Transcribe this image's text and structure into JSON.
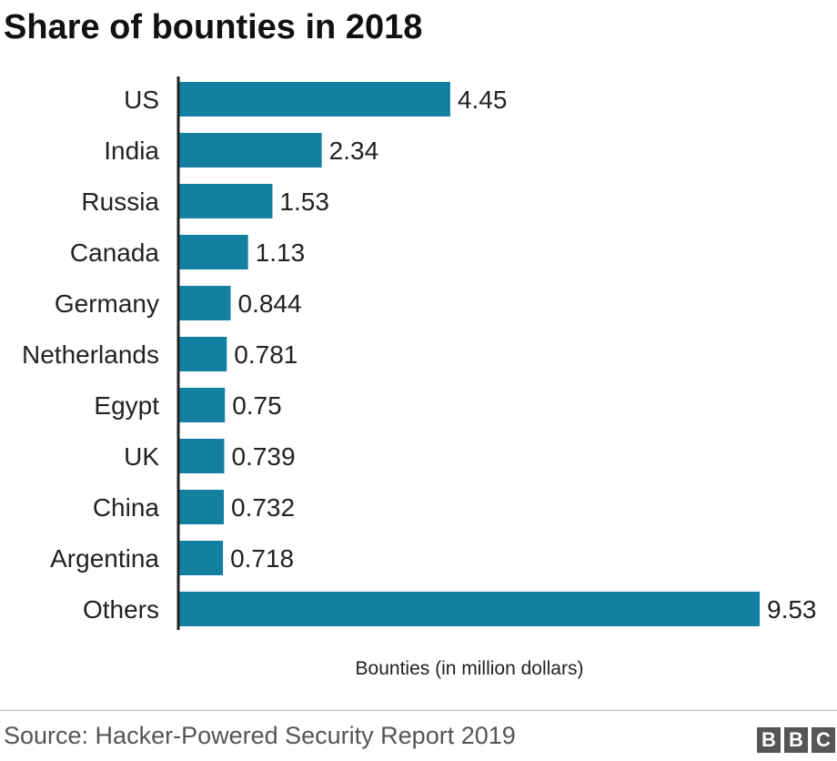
{
  "chart_data": {
    "type": "bar",
    "orientation": "horizontal",
    "title": "Share of bounties in 2018",
    "xlabel": "Bounties (in million dollars)",
    "ylabel": "",
    "categories": [
      "US",
      "India",
      "Russia",
      "Canada",
      "Germany",
      "Netherlands",
      "Egypt",
      "UK",
      "China",
      "Argentina",
      "Others"
    ],
    "values": [
      4.45,
      2.34,
      1.53,
      1.13,
      0.844,
      0.781,
      0.75,
      0.739,
      0.732,
      0.718,
      9.53
    ],
    "value_labels": [
      "4.45",
      "2.34",
      "1.53",
      "1.13",
      "0.844",
      "0.781",
      "0.75",
      "0.739",
      "0.732",
      "0.718",
      "9.53"
    ],
    "xlim": [
      0,
      9.53
    ],
    "grid": false,
    "bar_color": "#1380a1"
  },
  "footer": {
    "source": "Source: Hacker-Powered Security Report 2019",
    "logo": [
      "B",
      "B",
      "C"
    ]
  }
}
